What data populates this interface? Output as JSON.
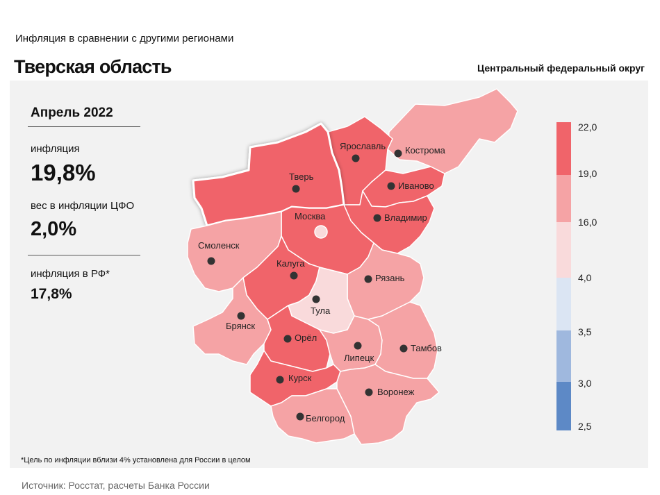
{
  "header": {
    "subtitle": "Инфляция  в сравнении  с другими  регионами",
    "title": "Тверская область",
    "district": "Центральный федеральный округ"
  },
  "info": {
    "month": "Апрель 2022",
    "inflation_label": "инфляция",
    "inflation_value": "19,8%",
    "weight_label": "вес в инфляции  ЦФО",
    "weight_value": "2,0%",
    "rf_label": "инфляция  в РФ*",
    "rf_value": "17,8%"
  },
  "footnote": "*Цель по инфляции вблизи 4% установлена для России в целом",
  "source": "Источник: Росстат, расчеты Банка России",
  "colors": {
    "band_22": "#f0646a",
    "band_19": "#f5a3a5",
    "band_16": "#f9dadb",
    "band_4": "#dbe5f3",
    "band_35": "#9fb8de",
    "band_3": "#5d89c6",
    "highlight_outline": "#ffffff"
  },
  "legend": {
    "ticks": [
      "22,0",
      "19,0",
      "16,0",
      "4,0",
      "3,5",
      "3,0",
      "2,5"
    ]
  },
  "regions": [
    {
      "name": "Тверь",
      "band": "22-19",
      "highlighted": true
    },
    {
      "name": "Ярославль",
      "band": "22-19"
    },
    {
      "name": "Кострома",
      "band": "19-16"
    },
    {
      "name": "Иваново",
      "band": "22-19"
    },
    {
      "name": "Владимир",
      "band": "22-19"
    },
    {
      "name": "Москва",
      "band": "22-19"
    },
    {
      "name": "Смоленск",
      "band": "19-16"
    },
    {
      "name": "Калуга",
      "band": "22-19"
    },
    {
      "name": "Рязань",
      "band": "19-16"
    },
    {
      "name": "Тула",
      "band": "16-4"
    },
    {
      "name": "Брянск",
      "band": "19-16"
    },
    {
      "name": "Орёл",
      "band": "22-19"
    },
    {
      "name": "Липецк",
      "band": "19-16"
    },
    {
      "name": "Тамбов",
      "band": "19-16"
    },
    {
      "name": "Курск",
      "band": "22-19"
    },
    {
      "name": "Воронеж",
      "band": "19-16"
    },
    {
      "name": "Белгород",
      "band": "19-16"
    }
  ]
}
